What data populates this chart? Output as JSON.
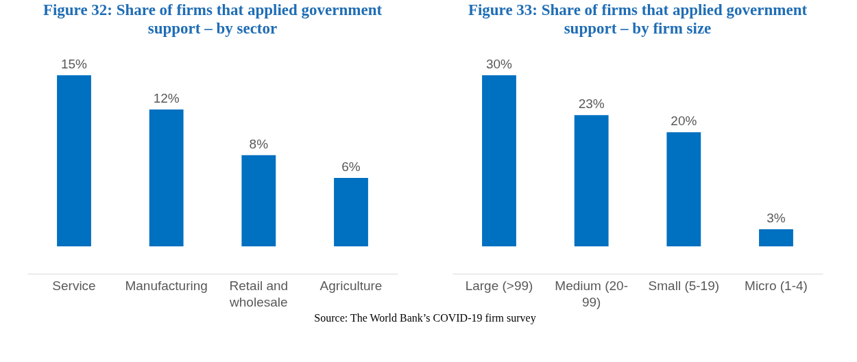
{
  "chart_data": [
    {
      "type": "bar",
      "title": "Figure 32: Share of firms that applied government support – by sector",
      "categories": [
        "Service",
        "Manufacturing",
        "Retail and wholesale",
        "Agriculture"
      ],
      "values": [
        15,
        12,
        8,
        6
      ],
      "value_labels": [
        "15%",
        "12%",
        "8%",
        "6%"
      ],
      "color": "#0070c0",
      "tick_labels": "x",
      "annotations": [
        "Source: The World Bank’s COVID-19 firm survey"
      ]
    },
    {
      "type": "bar",
      "title": "Figure 33: Share of firms that applied government support – by firm size",
      "categories": [
        "Large (>99)",
        "Medium (20-99)",
        "Small (5-19)",
        "Micro (1-4)"
      ],
      "values": [
        30,
        23,
        20,
        3
      ],
      "value_labels": [
        "30%",
        "23%",
        "20%",
        "3%"
      ],
      "color": "#0070c0",
      "tick_labels": "x"
    }
  ]
}
